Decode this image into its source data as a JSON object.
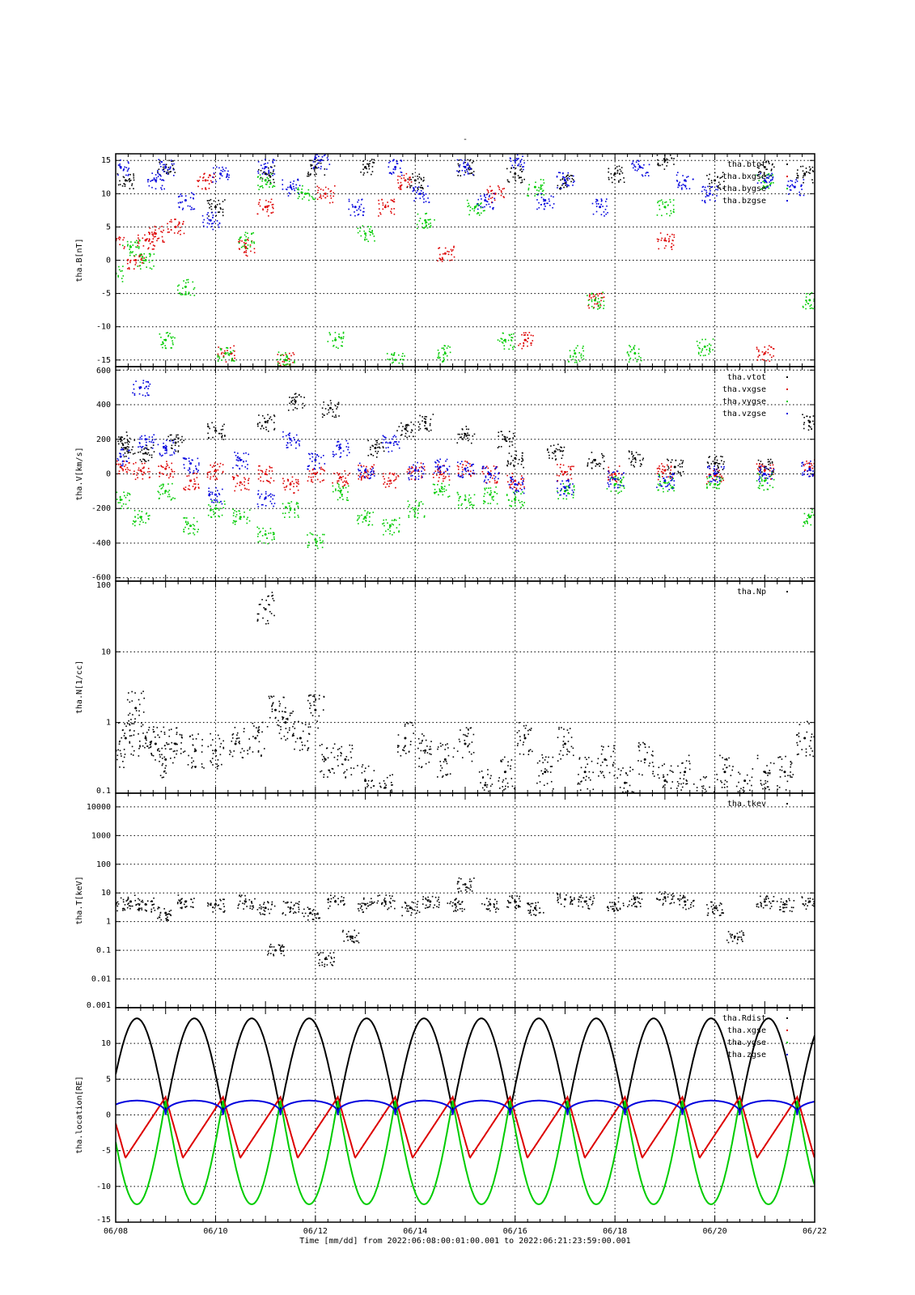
{
  "figure": {
    "title": "-",
    "xlabel": "Time [mm/dd]  from 2022:06:08:00:01:00.001  to  2022:06:21:23:59:00.001",
    "x_ticks": [
      "06/08",
      "06/10",
      "06/12",
      "06/14",
      "06/16",
      "06/18",
      "06/20",
      "06/22"
    ]
  },
  "colors": {
    "black": "#000000",
    "red": "#dd0000",
    "green": "#00cc00",
    "blue": "#0000dd"
  },
  "chart_data": [
    {
      "type": "scatter",
      "title": "",
      "ylabel": "tha.B[nT]",
      "ylim": [
        -16,
        16
      ],
      "yscale": "linear",
      "y_ticks": [
        "15",
        "10",
        "5",
        "0",
        "-5",
        "-10",
        "-15"
      ],
      "grid": true,
      "legend_position": "top-right",
      "x_unit": "days since 2022-06-08",
      "xlim": [
        0,
        14
      ],
      "series": [
        {
          "name": "tha.btot",
          "color": "black",
          "x": [
            0.2,
            1.0,
            2.0,
            3.0,
            4.0,
            5.0,
            6.0,
            7.0,
            8.0,
            9.0,
            10.0,
            11.0,
            12.0,
            13.0,
            13.8
          ],
          "y": [
            12,
            14,
            8,
            13,
            14,
            14,
            12,
            14,
            13,
            12,
            13,
            15,
            12,
            14,
            13
          ]
        },
        {
          "name": "tha.bxgse",
          "color": "red",
          "x": [
            0.0,
            0.4,
            0.6,
            0.8,
            1.2,
            1.8,
            2.2,
            2.6,
            3.0,
            3.4,
            4.2,
            5.4,
            5.8,
            6.6,
            7.6,
            8.2,
            9.6,
            11.0,
            13.0
          ],
          "y": [
            3,
            0,
            3,
            4,
            5,
            12,
            -14,
            2,
            8,
            -15,
            10,
            8,
            12,
            1,
            10,
            -12,
            -6,
            3,
            -14
          ]
        },
        {
          "name": "tha.bygse",
          "color": "green",
          "x": [
            0.0,
            0.3,
            0.6,
            1.0,
            1.4,
            2.2,
            2.6,
            3.0,
            3.4,
            3.8,
            4.4,
            5.0,
            5.6,
            6.2,
            6.6,
            7.2,
            7.8,
            8.4,
            9.2,
            9.6,
            10.4,
            11.0,
            11.8,
            13.0,
            13.9
          ],
          "y": [
            -2,
            2,
            0,
            -12,
            -4,
            -14,
            3,
            12,
            -15,
            10,
            -12,
            4,
            -15,
            6,
            -14,
            8,
            -12,
            11,
            -14,
            -6,
            -14,
            8,
            -13,
            12,
            -6
          ]
        },
        {
          "name": "tha.bzgse",
          "color": "blue",
          "x": [
            0.1,
            0.8,
            1.0,
            1.4,
            1.9,
            2.1,
            3.0,
            3.5,
            4.1,
            4.8,
            5.6,
            6.1,
            7.0,
            7.4,
            8.0,
            8.6,
            9.0,
            9.7,
            10.5,
            11.4,
            11.9,
            13.0,
            13.6
          ],
          "y": [
            14,
            12,
            14,
            9,
            6,
            13,
            14,
            11,
            15,
            8,
            14,
            10,
            14,
            9,
            15,
            9,
            12,
            8,
            14,
            12,
            10,
            12,
            11
          ]
        }
      ]
    },
    {
      "type": "scatter",
      "title": "",
      "ylabel": "tha.V[km/s]",
      "ylim": [
        -620,
        620
      ],
      "yscale": "linear",
      "y_ticks": [
        "600",
        "400",
        "200",
        "0",
        "-200",
        "-400",
        "-600"
      ],
      "grid": true,
      "legend_position": "top-right",
      "x_unit": "days since 2022-06-08",
      "xlim": [
        0,
        14
      ],
      "series": [
        {
          "name": "tha.vtot",
          "color": "black",
          "x": [
            0.1,
            0.2,
            0.6,
            1.2,
            2.0,
            3.0,
            3.6,
            4.3,
            5.2,
            5.8,
            6.2,
            7.0,
            7.8,
            8.0,
            8.8,
            9.6,
            10.4,
            11.2,
            12.0,
            13.0,
            13.9
          ],
          "y": [
            200,
            150,
            120,
            180,
            250,
            300,
            420,
            380,
            150,
            260,
            300,
            230,
            200,
            90,
            130,
            80,
            90,
            40,
            60,
            40,
            300
          ]
        },
        {
          "name": "tha.vxgse",
          "color": "red",
          "x": [
            0.1,
            0.5,
            1.0,
            1.5,
            2.0,
            2.5,
            3.0,
            3.5,
            4.0,
            4.5,
            5.0,
            5.5,
            6.0,
            6.5,
            7.0,
            7.5,
            8.0,
            9.0,
            10.0,
            11.0,
            12.0,
            13.0,
            13.9
          ],
          "y": [
            40,
            20,
            30,
            -40,
            20,
            -50,
            0,
            -60,
            0,
            -20,
            10,
            -40,
            20,
            10,
            30,
            0,
            -40,
            10,
            0,
            20,
            -10,
            20,
            40
          ]
        },
        {
          "name": "tha.vygse",
          "color": "green",
          "x": [
            0.1,
            0.5,
            1.0,
            1.5,
            2.0,
            2.5,
            3.0,
            3.5,
            4.0,
            4.5,
            5.0,
            5.5,
            6.0,
            6.5,
            7.0,
            7.5,
            8.0,
            9.0,
            10.0,
            11.0,
            12.0,
            13.0,
            13.9
          ],
          "y": [
            -150,
            -250,
            -100,
            -300,
            -200,
            -250,
            -350,
            -200,
            -380,
            -100,
            -250,
            -300,
            -200,
            -100,
            -150,
            -120,
            -150,
            -100,
            -60,
            -50,
            -60,
            -40,
            -250
          ]
        },
        {
          "name": "tha.vzgse",
          "color": "blue",
          "x": [
            0.1,
            0.5,
            0.6,
            1.0,
            1.5,
            2.0,
            2.5,
            3.0,
            3.5,
            4.0,
            4.5,
            5.0,
            5.5,
            6.0,
            6.5,
            7.0,
            7.5,
            8.0,
            9.0,
            10.0,
            11.0,
            12.0,
            13.0,
            13.9
          ],
          "y": [
            100,
            500,
            200,
            150,
            60,
            -120,
            80,
            -140,
            200,
            80,
            150,
            20,
            180,
            20,
            40,
            30,
            0,
            -60,
            -80,
            -30,
            -40,
            0,
            0,
            30
          ]
        }
      ]
    },
    {
      "type": "scatter",
      "title": "",
      "ylabel": "tha.N[1/cc]",
      "ylim": [
        0.1,
        100
      ],
      "yscale": "log",
      "y_ticks": [
        "100",
        "10",
        "1",
        "0.1"
      ],
      "grid": true,
      "legend_position": "top-right",
      "x_unit": "days since 2022-06-08",
      "xlim": [
        0,
        14
      ],
      "series": [
        {
          "name": "tha.Np",
          "color": "black",
          "x": [
            0.0,
            0.2,
            0.4,
            0.6,
            0.8,
            1.0,
            1.2,
            1.6,
            2.0,
            2.4,
            2.8,
            3.0,
            3.2,
            3.4,
            3.7,
            4.0,
            4.2,
            4.6,
            5.0,
            5.4,
            5.8,
            6.2,
            6.6,
            7.0,
            7.4,
            7.8,
            8.2,
            8.6,
            9.0,
            9.4,
            9.8,
            10.2,
            10.6,
            11.0,
            11.4,
            11.8,
            12.2,
            12.6,
            13.0,
            13.4,
            13.8
          ],
          "y": [
            0.4,
            0.6,
            1.6,
            0.6,
            0.5,
            0.3,
            0.5,
            0.4,
            0.4,
            0.5,
            0.6,
            40,
            1.5,
            1.0,
            0.6,
            1.5,
            0.3,
            0.3,
            0.15,
            0.12,
            0.6,
            0.4,
            0.3,
            0.5,
            0.13,
            0.2,
            0.6,
            0.2,
            0.5,
            0.2,
            0.3,
            0.14,
            0.3,
            0.15,
            0.2,
            0.1,
            0.2,
            0.15,
            0.2,
            0.2,
            0.6
          ]
        }
      ]
    },
    {
      "type": "scatter",
      "title": "",
      "ylabel": "tha.T[keV]",
      "ylim": [
        0.001,
        30000
      ],
      "yscale": "log",
      "y_ticks": [
        "10000",
        "1000",
        "100",
        "10",
        "1",
        "0.1",
        "0.01",
        "0.001"
      ],
      "grid": true,
      "legend_position": "top-right",
      "x_unit": "days since 2022-06-08",
      "xlim": [
        0,
        14
      ],
      "series": [
        {
          "name": "tha.tkev",
          "color": "black",
          "x": [
            0.0,
            0.3,
            0.6,
            1.0,
            1.4,
            2.0,
            2.6,
            3.0,
            3.2,
            3.5,
            3.9,
            4.2,
            4.4,
            4.7,
            5.0,
            5.4,
            5.9,
            6.3,
            6.8,
            7.0,
            7.5,
            8.0,
            8.4,
            9.0,
            9.4,
            10.0,
            10.4,
            11.0,
            11.4,
            12.0,
            12.4,
            13.0,
            13.4,
            13.9
          ],
          "y": [
            4,
            5,
            4,
            2,
            5,
            4,
            5,
            3,
            0.1,
            3,
            2,
            0.05,
            5,
            0.3,
            4,
            5,
            3,
            5,
            4,
            20,
            4,
            5,
            3,
            6,
            5,
            4,
            6,
            7,
            5,
            3,
            0.3,
            5,
            4,
            5
          ]
        }
      ]
    },
    {
      "type": "line",
      "title": "",
      "ylabel": "tha.location[RE]",
      "ylim": [
        -15,
        15
      ],
      "yscale": "linear",
      "y_ticks": [
        "10",
        "5",
        "0",
        "-5",
        "-10",
        "-15"
      ],
      "grid": true,
      "legend_position": "top-right",
      "x_unit": "days since 2022-06-08",
      "xlim": [
        0,
        14
      ],
      "orbit_period_days": 1.15,
      "series": [
        {
          "name": "tha.Rdist",
          "color": "black",
          "shape": "arcs",
          "min": 0.5,
          "max": 13.5
        },
        {
          "name": "tha.xgse",
          "color": "red",
          "shape": "sawtooth",
          "min": -6,
          "max": 2.5
        },
        {
          "name": "tha.ygse",
          "color": "green",
          "shape": "arcs-inverted",
          "min": -12.5,
          "max": 2
        },
        {
          "name": "tha.zgse",
          "color": "blue",
          "shape": "bumps",
          "min": 0,
          "max": 2
        }
      ]
    }
  ]
}
